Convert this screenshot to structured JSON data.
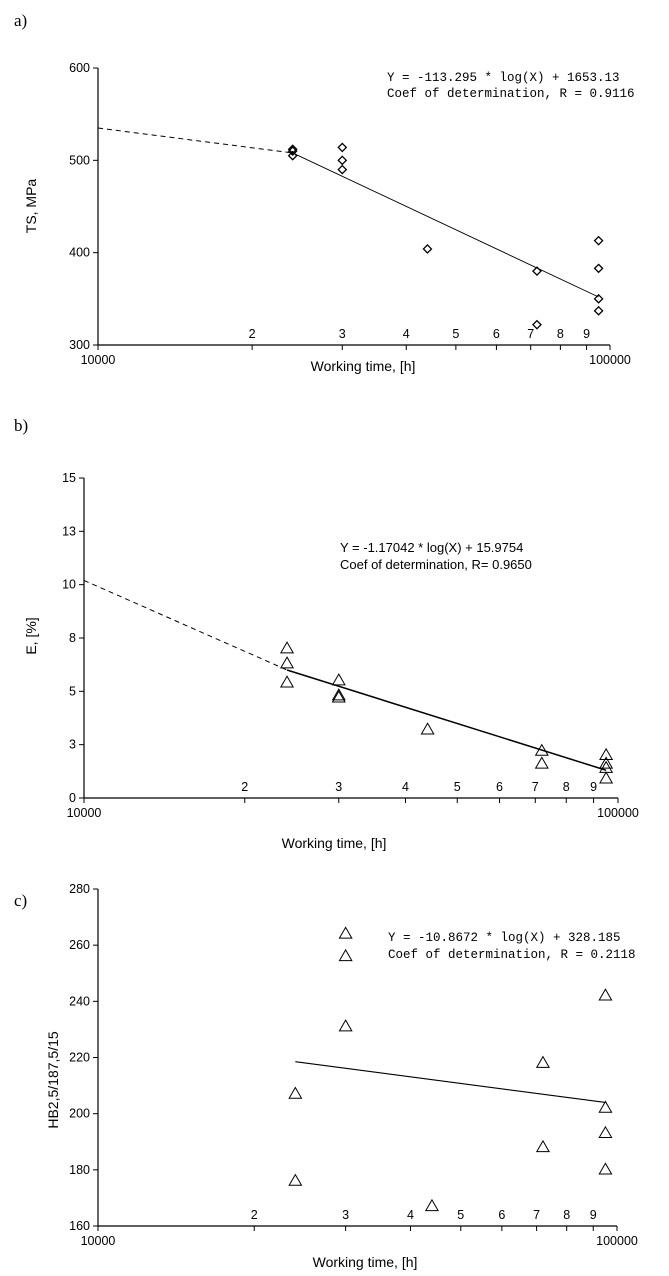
{
  "chart_data": [
    {
      "type": "scatter",
      "panel_label": "a)",
      "title": "",
      "xlabel": "Working time, [h]",
      "ylabel": "TS, MPa",
      "x_scale": "log",
      "xlim": [
        10000,
        100000
      ],
      "ylim": [
        300,
        600
      ],
      "y_ticks": [
        300,
        400,
        500,
        600
      ],
      "x_ticks": [
        {
          "value": 10000,
          "label": "10000"
        },
        {
          "value": 20000,
          "label": "2"
        },
        {
          "value": 30000,
          "label": "3"
        },
        {
          "value": 40000,
          "label": "4"
        },
        {
          "value": 50000,
          "label": "5"
        },
        {
          "value": 60000,
          "label": "6"
        },
        {
          "value": 70000,
          "label": "7"
        },
        {
          "value": 80000,
          "label": "8"
        },
        {
          "value": 90000,
          "label": "9"
        },
        {
          "value": 100000,
          "label": "100000"
        }
      ],
      "marker": "diamond",
      "points": [
        [
          24000,
          512
        ],
        [
          24000,
          510
        ],
        [
          24000,
          505
        ],
        [
          30000,
          514
        ],
        [
          30000,
          500
        ],
        [
          30000,
          490
        ],
        [
          44000,
          404
        ],
        [
          72000,
          380
        ],
        [
          72000,
          322
        ],
        [
          95000,
          413
        ],
        [
          95000,
          383
        ],
        [
          95000,
          350
        ],
        [
          95000,
          337
        ]
      ],
      "fit_line": {
        "x": [
          24000,
          95000
        ],
        "y": [
          508,
          352
        ]
      },
      "extrapolation": {
        "x": [
          10000,
          24000
        ],
        "y": [
          535,
          508
        ]
      },
      "annotations": [
        "Y = -113.295 * log(X) + 1653.13",
        "Coef of determination, R = 0.9116"
      ],
      "grid": false
    },
    {
      "type": "scatter",
      "panel_label": "b)",
      "title": "",
      "xlabel": "Working time,  [h]",
      "ylabel": "E,  [%]",
      "x_scale": "log",
      "xlim": [
        10000,
        100000
      ],
      "ylim": [
        0,
        15
      ],
      "y_ticks": [
        {
          "value": 0,
          "label": "0"
        },
        {
          "value": 2.5,
          "label": "3"
        },
        {
          "value": 5,
          "label": "5"
        },
        {
          "value": 7.5,
          "label": "8"
        },
        {
          "value": 10,
          "label": "10"
        },
        {
          "value": 12.5,
          "label": "13"
        },
        {
          "value": 15,
          "label": "15"
        }
      ],
      "x_ticks": [
        {
          "value": 10000,
          "label": "10000"
        },
        {
          "value": 20000,
          "label": "2"
        },
        {
          "value": 30000,
          "label": "3"
        },
        {
          "value": 40000,
          "label": "4"
        },
        {
          "value": 50000,
          "label": "5"
        },
        {
          "value": 60000,
          "label": "6"
        },
        {
          "value": 70000,
          "label": "7"
        },
        {
          "value": 80000,
          "label": "8"
        },
        {
          "value": 90000,
          "label": "9"
        },
        {
          "value": 100000,
          "label": "100000"
        }
      ],
      "marker": "triangle",
      "points": [
        [
          24000,
          7.0
        ],
        [
          24000,
          6.3
        ],
        [
          24000,
          5.4
        ],
        [
          30000,
          5.5
        ],
        [
          30000,
          4.8
        ],
        [
          30000,
          4.7
        ],
        [
          44000,
          3.2
        ],
        [
          72000,
          2.2
        ],
        [
          72000,
          1.6
        ],
        [
          95000,
          2.0
        ],
        [
          95000,
          1.6
        ],
        [
          95000,
          1.4
        ],
        [
          95000,
          0.9
        ]
      ],
      "fit_line": {
        "x": [
          24000,
          95000
        ],
        "y": [
          6.0,
          1.3
        ]
      },
      "extrapolation": {
        "x": [
          10000,
          24000
        ],
        "y": [
          10.2,
          6.0
        ]
      },
      "annotations": [
        "Y = -1.17042 * log(X) + 15.9754",
        "Coef of determination, R= 0.9650"
      ],
      "grid": false
    },
    {
      "type": "scatter",
      "panel_label": "c)",
      "title": "",
      "xlabel": "Working time, [h]",
      "ylabel": "HB2,5/187,5/15",
      "x_scale": "log",
      "xlim": [
        10000,
        100000
      ],
      "ylim": [
        160,
        280
      ],
      "y_ticks": [
        160,
        180,
        200,
        220,
        240,
        260,
        280
      ],
      "x_ticks": [
        {
          "value": 10000,
          "label": "10000"
        },
        {
          "value": 20000,
          "label": "2"
        },
        {
          "value": 30000,
          "label": "3"
        },
        {
          "value": 40000,
          "label": "4"
        },
        {
          "value": 50000,
          "label": "5"
        },
        {
          "value": 60000,
          "label": "6"
        },
        {
          "value": 70000,
          "label": "7"
        },
        {
          "value": 80000,
          "label": "8"
        },
        {
          "value": 90000,
          "label": "9"
        },
        {
          "value": 100000,
          "label": "100000"
        }
      ],
      "marker": "triangle",
      "points": [
        [
          24000,
          207
        ],
        [
          24000,
          176
        ],
        [
          30000,
          264
        ],
        [
          30000,
          256
        ],
        [
          30000,
          231
        ],
        [
          44000,
          167
        ],
        [
          72000,
          218
        ],
        [
          72000,
          188
        ],
        [
          95000,
          242
        ],
        [
          95000,
          202
        ],
        [
          95000,
          193
        ],
        [
          95000,
          180
        ]
      ],
      "fit_line": {
        "x": [
          24000,
          95000
        ],
        "y": [
          218.5,
          204
        ]
      },
      "annotations": [
        "Y = -10.8672 * log(X) + 328.185",
        "Coef of determination, R = 0.2118"
      ],
      "grid": false
    }
  ]
}
